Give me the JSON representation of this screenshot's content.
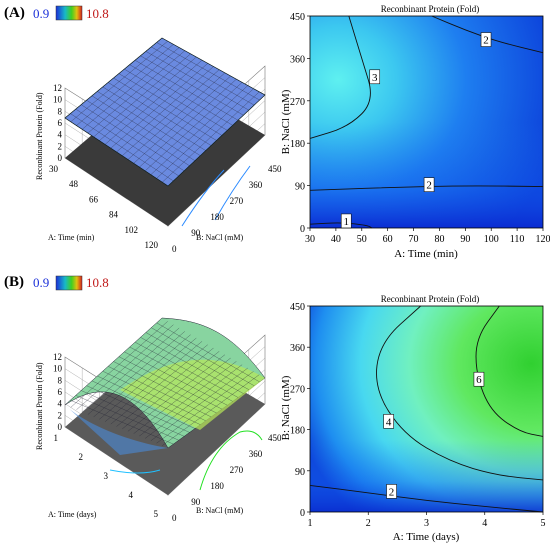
{
  "panels": [
    {
      "label": "(A)",
      "colorbar": {
        "min_label": "0.9",
        "max_label": "10.8",
        "min_color": "#1d2fd6",
        "max_color": "#d42020"
      },
      "surface": {
        "zlabel": "Reconbinant Protein (Fold)",
        "xlabel": "A: Time (min)",
        "ylabel": "B: NaCl (mM)",
        "x_ticks": [
          "30",
          "48",
          "66",
          "84",
          "102",
          "120"
        ],
        "y_ticks": [
          "0",
          "90",
          "180",
          "270",
          "360",
          "450"
        ],
        "z_ticks": [
          "0",
          "2",
          "4",
          "6",
          "8",
          "10",
          "12"
        ],
        "zlim": [
          0,
          12
        ]
      }
    },
    {
      "label": "(B)",
      "colorbar": {
        "min_label": "0.9",
        "max_label": "10.8",
        "min_color": "#1d2fd6",
        "max_color": "#d42020"
      },
      "surface": {
        "zlabel": "Reconbinant Protein (Fold)",
        "xlabel": "A: Time (days)",
        "ylabel": "B: NaCl (mM)",
        "x_ticks": [
          "1",
          "2",
          "3",
          "4",
          "5"
        ],
        "y_ticks": [
          "0",
          "90",
          "180",
          "270",
          "360",
          "450"
        ],
        "z_ticks": [
          "0",
          "2",
          "4",
          "6",
          "8",
          "10",
          "12"
        ],
        "zlim": [
          0,
          12
        ]
      }
    }
  ],
  "chart_data": [
    {
      "type": "contour",
      "title": "Reconbinant Protein (Fold)",
      "xlabel": "A: Time (min)",
      "ylabel": "B: NaCl (mM)",
      "x_ticks": [
        "30",
        "40",
        "50",
        "60",
        "70",
        "80",
        "90",
        "100",
        "110",
        "120"
      ],
      "y_ticks": [
        "0",
        "90",
        "180",
        "270",
        "360",
        "450"
      ],
      "xlim": [
        30,
        120
      ],
      "ylim": [
        0,
        450
      ],
      "contours": [
        {
          "level": "1",
          "points": [
            [
              30,
              8
            ],
            [
              42,
              12
            ],
            [
              52,
              6
            ],
            [
              54,
              0
            ]
          ],
          "label_at": [
            44,
            15
          ]
        },
        {
          "level": "2",
          "points": [
            [
              30,
              80
            ],
            [
              60,
              86
            ],
            [
              90,
              90
            ],
            [
              120,
              88
            ]
          ],
          "label_at": [
            76,
            92
          ]
        },
        {
          "level": "2",
          "points": [
            [
              77,
              450
            ],
            [
              90,
              420
            ],
            [
              103,
              395
            ],
            [
              120,
              372
            ]
          ],
          "label_at": [
            98,
            400
          ]
        },
        {
          "level": "3",
          "points": [
            [
              30,
              190
            ],
            [
              45,
              215
            ],
            [
              55,
              270
            ],
            [
              50,
              360
            ],
            [
              45,
              450
            ]
          ],
          "label_at": [
            55,
            321
          ]
        }
      ]
    },
    {
      "type": "contour",
      "title": "Reconbinant Protein (Fold)",
      "xlabel": "A: Time (days)",
      "ylabel": "B: NaCl (mM)",
      "x_ticks": [
        "1",
        "2",
        "3",
        "4",
        "5"
      ],
      "y_ticks": [
        "0",
        "90",
        "180",
        "270",
        "360",
        "450"
      ],
      "xlim": [
        1,
        5
      ],
      "ylim": [
        0,
        450
      ],
      "contours": [
        {
          "level": "2",
          "points": [
            [
              1,
              58
            ],
            [
              2,
              42
            ],
            [
              3,
              25
            ],
            [
              4,
              12
            ],
            [
              5,
              0
            ]
          ],
          "label_at": [
            2.4,
            45
          ]
        },
        {
          "level": "4",
          "points": [
            [
              2.9,
              450
            ],
            [
              2.2,
              370
            ],
            [
              2.1,
              270
            ],
            [
              2.6,
              170
            ],
            [
              3.4,
              110
            ],
            [
              4.2,
              80
            ],
            [
              5,
              70
            ]
          ],
          "label_at": [
            2.35,
            198
          ]
        },
        {
          "level": "6",
          "points": [
            [
              4.25,
              450
            ],
            [
              3.85,
              380
            ],
            [
              3.85,
              300
            ],
            [
              4.1,
              220
            ],
            [
              4.6,
              175
            ],
            [
              5,
              165
            ]
          ],
          "label_at": [
            3.9,
            290
          ]
        }
      ]
    }
  ]
}
